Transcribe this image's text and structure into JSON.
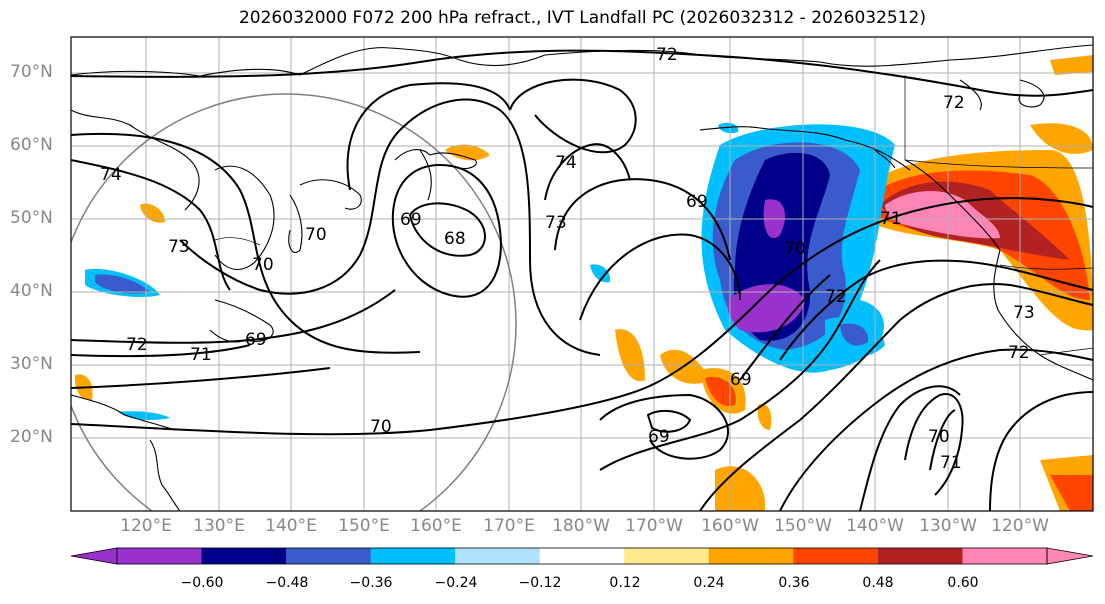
{
  "title": "2026032000 F072 200 hPa refract., IVT Landfall PC (2026032312 - 2026032512)",
  "latitude_labels": [
    "70°N",
    "60°N",
    "50°N",
    "40°N",
    "30°N",
    "20°N"
  ],
  "longitude_labels": [
    "120°E",
    "130°E",
    "140°E",
    "150°E",
    "160°E",
    "170°E",
    "180°W",
    "170°W",
    "160°W",
    "150°W",
    "140°W",
    "130°W",
    "120°W"
  ],
  "contour_labels": [
    "72",
    "72",
    "74",
    "74",
    "73",
    "69",
    "69",
    "70",
    "68",
    "70",
    "73",
    "69",
    "70",
    "72",
    "71",
    "72",
    "71",
    "70",
    "69",
    "69",
    "70",
    "71",
    "73",
    "72"
  ],
  "colorbar": {
    "colors": [
      "#9932cc",
      "#00008b",
      "#3a5bcc",
      "#00bfff",
      "#b0e2ff",
      "#ffffff",
      "#ffe98a",
      "#ffa500",
      "#ff4500",
      "#b22222",
      "#ff85b4"
    ],
    "tick_labels": [
      "−0.60",
      "−0.48",
      "−0.36",
      "−0.24",
      "−0.12",
      "0.12",
      "0.24",
      "0.36",
      "0.48",
      "0.60"
    ]
  }
}
